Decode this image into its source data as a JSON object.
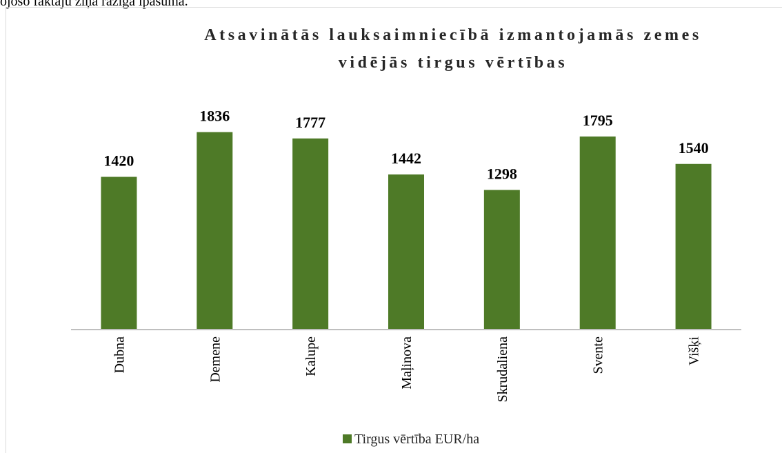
{
  "page_text": "ojošo faktāju ziņā ražīgā īpašumā.",
  "chart_data": {
    "type": "bar",
    "title": [
      "Atsavinātās lauksaimniecībā izmantojamās zemes",
      "vidējās tirgus vērtības"
    ],
    "categories": [
      "Dubna",
      "Demene",
      "Kalupe",
      "Maļinova",
      "Skrudaliena",
      "Svente",
      "Višķi"
    ],
    "series": [
      {
        "name": "Tirgus vērtība EUR/ha",
        "color": "#4e7a27",
        "values": [
          1420,
          1836,
          1777,
          1442,
          1298,
          1795,
          1540
        ]
      }
    ],
    "ylim": [
      0,
      2000
    ],
    "legend": "bottom"
  }
}
